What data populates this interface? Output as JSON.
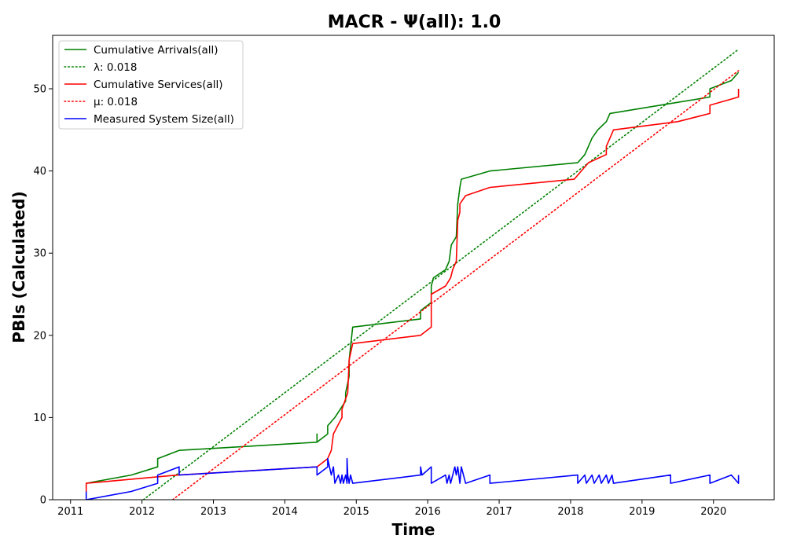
{
  "chart_data": {
    "type": "line",
    "title": "MACR -  Ψ(all): 1.0",
    "xlabel": "Time",
    "ylabel": "PBIs (Calculated)",
    "xlim": [
      2010.75,
      2020.85
    ],
    "ylim": [
      0,
      56.5
    ],
    "x_ticks": [
      2011,
      2012,
      2013,
      2014,
      2015,
      2016,
      2017,
      2018,
      2019,
      2020
    ],
    "x_tick_labels": [
      "2011",
      "2012",
      "2013",
      "2014",
      "2015",
      "2016",
      "2017",
      "2018",
      "2019",
      "2020"
    ],
    "y_ticks": [
      0,
      10,
      20,
      30,
      40,
      50
    ],
    "y_tick_labels": [
      "0",
      "10",
      "20",
      "30",
      "40",
      "50"
    ],
    "grid": false,
    "legend_position": "top-left",
    "series": [
      {
        "name": "Cumulative Arrivals(all)",
        "style": "solid",
        "color": "#008000",
        "points": [
          [
            2011.22,
            2
          ],
          [
            2011.85,
            3
          ],
          [
            2012.22,
            4
          ],
          [
            2012.22,
            5
          ],
          [
            2012.52,
            6
          ],
          [
            2014.45,
            7
          ],
          [
            2014.45,
            8
          ],
          [
            2014.45,
            7
          ],
          [
            2014.6,
            8
          ],
          [
            2014.6,
            9
          ],
          [
            2014.7,
            10
          ],
          [
            2014.85,
            12
          ],
          [
            2014.85,
            13
          ],
          [
            2014.9,
            15
          ],
          [
            2014.9,
            17
          ],
          [
            2014.95,
            21
          ],
          [
            2015.9,
            22
          ],
          [
            2015.9,
            23
          ],
          [
            2016.05,
            24
          ],
          [
            2016.05,
            26
          ],
          [
            2016.08,
            27
          ],
          [
            2016.25,
            28
          ],
          [
            2016.3,
            29
          ],
          [
            2016.33,
            31
          ],
          [
            2016.4,
            32
          ],
          [
            2016.42,
            36
          ],
          [
            2016.45,
            38
          ],
          [
            2016.47,
            39
          ],
          [
            2016.87,
            40
          ],
          [
            2018.1,
            41
          ],
          [
            2018.2,
            42
          ],
          [
            2018.3,
            44
          ],
          [
            2018.38,
            45
          ],
          [
            2018.5,
            46
          ],
          [
            2018.55,
            47
          ],
          [
            2019.95,
            49
          ],
          [
            2019.95,
            50
          ],
          [
            2020.25,
            51
          ],
          [
            2020.35,
            52
          ]
        ]
      },
      {
        "name": "λ: 0.018",
        "style": "dotted",
        "color": "#008000",
        "points": [
          [
            2012.02,
            0
          ],
          [
            2020.35,
            54.8
          ]
        ]
      },
      {
        "name": "Cumulative Services(all)",
        "style": "solid",
        "color": "#ff0000",
        "points": [
          [
            2011.22,
            1
          ],
          [
            2011.22,
            2
          ],
          [
            2012.5,
            3
          ],
          [
            2014.45,
            4
          ],
          [
            2014.6,
            5
          ],
          [
            2014.65,
            6
          ],
          [
            2014.68,
            8
          ],
          [
            2014.8,
            10
          ],
          [
            2014.8,
            11
          ],
          [
            2014.88,
            13
          ],
          [
            2014.9,
            17
          ],
          [
            2014.95,
            19
          ],
          [
            2015.9,
            20
          ],
          [
            2016.05,
            21
          ],
          [
            2016.05,
            25
          ],
          [
            2016.25,
            26
          ],
          [
            2016.32,
            27
          ],
          [
            2016.35,
            28
          ],
          [
            2016.4,
            29
          ],
          [
            2016.42,
            34
          ],
          [
            2016.45,
            35
          ],
          [
            2016.45,
            36
          ],
          [
            2016.53,
            37
          ],
          [
            2016.87,
            38
          ],
          [
            2018.05,
            39
          ],
          [
            2018.15,
            40
          ],
          [
            2018.25,
            41
          ],
          [
            2018.5,
            42
          ],
          [
            2018.5,
            43
          ],
          [
            2018.55,
            44
          ],
          [
            2018.6,
            45
          ],
          [
            2019.5,
            46
          ],
          [
            2019.95,
            47
          ],
          [
            2019.95,
            48
          ],
          [
            2020.35,
            49
          ],
          [
            2020.35,
            50
          ]
        ]
      },
      {
        "name": "μ: 0.018",
        "style": "dotted",
        "color": "#ff0000",
        "points": [
          [
            2012.43,
            0
          ],
          [
            2020.35,
            52.2
          ]
        ]
      },
      {
        "name": "Measured System Size(all)",
        "style": "solid",
        "color": "#0000ff",
        "points": [
          [
            2011.22,
            1
          ],
          [
            2011.22,
            0
          ],
          [
            2011.85,
            1
          ],
          [
            2012.22,
            2
          ],
          [
            2012.22,
            3
          ],
          [
            2012.52,
            4
          ],
          [
            2012.52,
            3
          ],
          [
            2014.45,
            4
          ],
          [
            2014.45,
            3
          ],
          [
            2014.6,
            4
          ],
          [
            2014.6,
            5
          ],
          [
            2014.65,
            3
          ],
          [
            2014.68,
            4
          ],
          [
            2014.7,
            2
          ],
          [
            2014.75,
            3
          ],
          [
            2014.78,
            2
          ],
          [
            2014.8,
            3
          ],
          [
            2014.82,
            2
          ],
          [
            2014.85,
            3
          ],
          [
            2014.87,
            2
          ],
          [
            2014.87,
            5
          ],
          [
            2014.88,
            3
          ],
          [
            2014.9,
            2
          ],
          [
            2014.92,
            3
          ],
          [
            2014.95,
            2
          ],
          [
            2015.9,
            3
          ],
          [
            2015.9,
            4
          ],
          [
            2015.92,
            3
          ],
          [
            2016.05,
            4
          ],
          [
            2016.05,
            2
          ],
          [
            2016.25,
            3
          ],
          [
            2016.27,
            2
          ],
          [
            2016.3,
            3
          ],
          [
            2016.32,
            2
          ],
          [
            2016.35,
            3
          ],
          [
            2016.38,
            4
          ],
          [
            2016.4,
            3
          ],
          [
            2016.42,
            4
          ],
          [
            2016.45,
            2
          ],
          [
            2016.47,
            4
          ],
          [
            2016.53,
            2
          ],
          [
            2016.87,
            3
          ],
          [
            2016.87,
            2
          ],
          [
            2018.1,
            3
          ],
          [
            2018.1,
            2
          ],
          [
            2018.2,
            3
          ],
          [
            2018.22,
            2
          ],
          [
            2018.3,
            3
          ],
          [
            2018.33,
            2
          ],
          [
            2018.4,
            3
          ],
          [
            2018.43,
            2
          ],
          [
            2018.5,
            3
          ],
          [
            2018.53,
            2
          ],
          [
            2018.58,
            3
          ],
          [
            2018.6,
            2
          ],
          [
            2019.4,
            3
          ],
          [
            2019.4,
            2
          ],
          [
            2019.95,
            3
          ],
          [
            2019.95,
            2
          ],
          [
            2020.25,
            3
          ],
          [
            2020.35,
            2
          ],
          [
            2020.35,
            3
          ]
        ]
      }
    ]
  }
}
